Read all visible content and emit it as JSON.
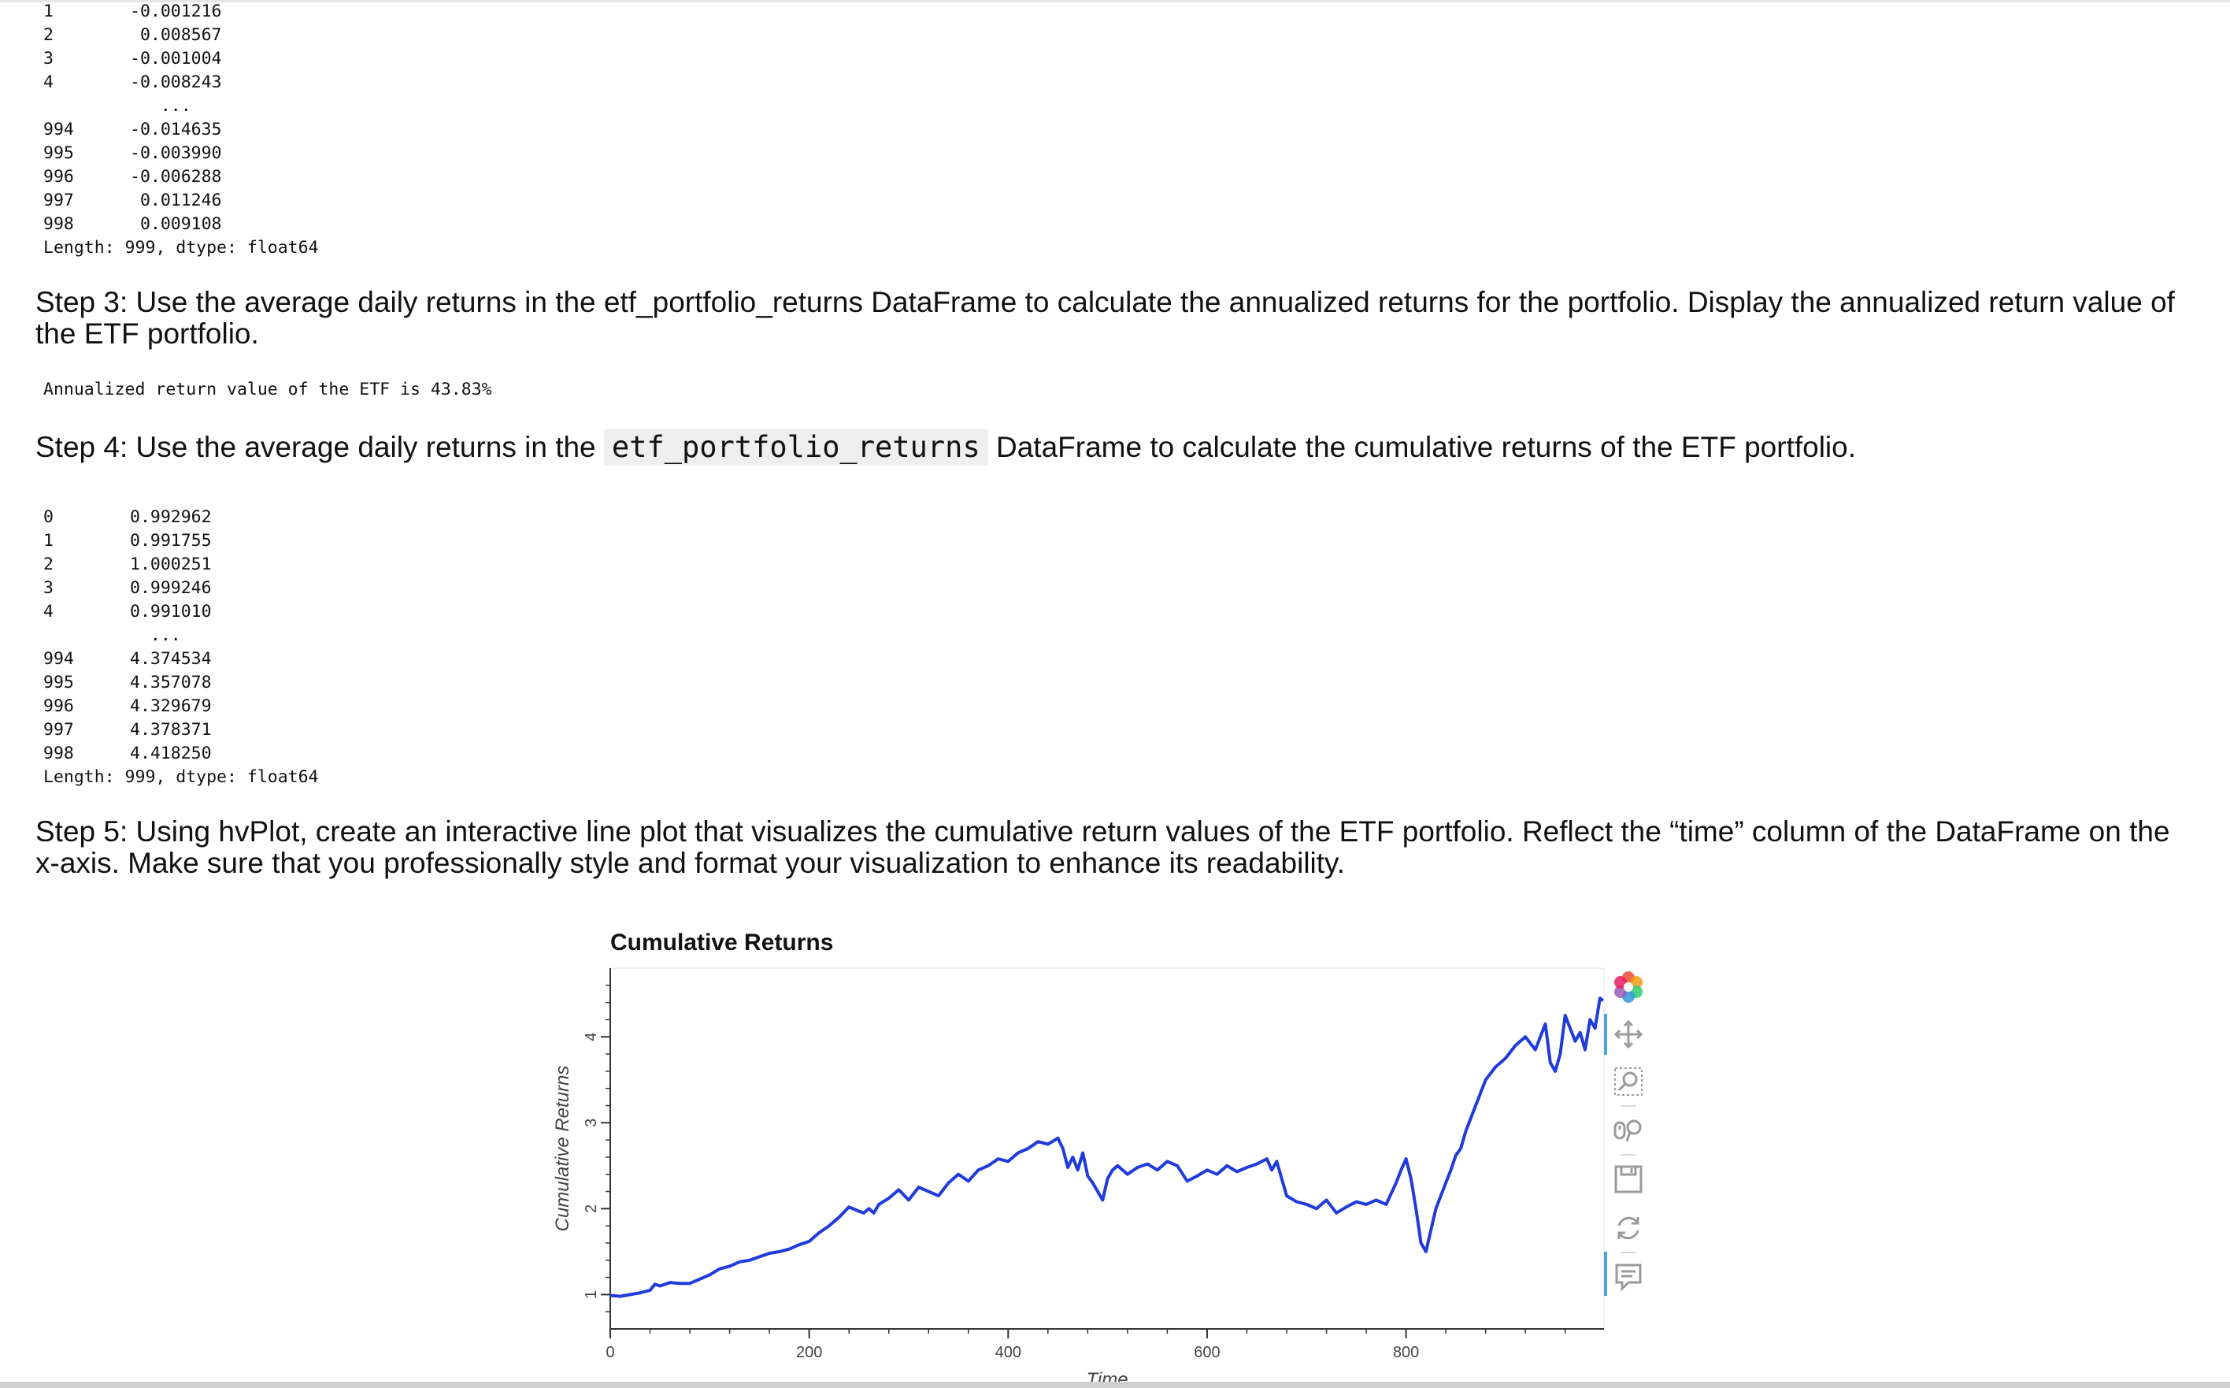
{
  "output1": {
    "rows": [
      {
        "index": "1",
        "value": "-0.001216"
      },
      {
        "index": "2",
        "value": " 0.008567"
      },
      {
        "index": "3",
        "value": "-0.001004"
      },
      {
        "index": "4",
        "value": "-0.008243"
      },
      {
        "index": "",
        "value": "   ..."
      },
      {
        "index": "994",
        "value": "-0.014635"
      },
      {
        "index": "995",
        "value": "-0.003990"
      },
      {
        "index": "996",
        "value": "-0.006288"
      },
      {
        "index": "997",
        "value": " 0.011246"
      },
      {
        "index": "998",
        "value": " 0.009108"
      }
    ],
    "footer": "Length: 999, dtype: float64"
  },
  "step3": {
    "heading": "Step 3: Use the average daily returns in the etf_portfolio_returns DataFrame to calculate the annualized returns for the portfolio. Display the annualized return value of the ETF portfolio.",
    "output": "Annualized return value of the ETF is 43.83%"
  },
  "step4": {
    "heading_before": "Step 4: Use the average daily returns in the",
    "code": "etf_portfolio_returns",
    "heading_after": "DataFrame to calculate the cumulative returns of the ETF portfolio."
  },
  "output2": {
    "rows": [
      {
        "index": "0",
        "value": "0.992962"
      },
      {
        "index": "1",
        "value": "0.991755"
      },
      {
        "index": "2",
        "value": "1.000251"
      },
      {
        "index": "3",
        "value": "0.999246"
      },
      {
        "index": "4",
        "value": "0.991010"
      },
      {
        "index": "",
        "value": "  ..."
      },
      {
        "index": "994",
        "value": "4.374534"
      },
      {
        "index": "995",
        "value": "4.357078"
      },
      {
        "index": "996",
        "value": "4.329679"
      },
      {
        "index": "997",
        "value": "4.378371"
      },
      {
        "index": "998",
        "value": "4.418250"
      }
    ],
    "footer": "Length: 999, dtype: float64"
  },
  "step5": {
    "heading": "Step 5: Using hvPlot, create an interactive line plot that visualizes the cumulative return values of the ETF portfolio. Reflect the “time” column of the DataFrame on the x-axis. Make sure that you professionally style and format your visualization to enhance its readability."
  },
  "chart_data": {
    "type": "line",
    "title": "Cumulative Returns",
    "xlabel": "Time",
    "ylabel": "Cumulative Returns",
    "xlim": [
      0,
      999
    ],
    "ylim": [
      0.6,
      4.8
    ],
    "xticks": [
      0,
      200,
      400,
      600,
      800
    ],
    "yticks": [
      1,
      2,
      3,
      4
    ],
    "line_color": "#1f3bdb",
    "series": [
      {
        "x": [
          0,
          10,
          20,
          30,
          40,
          45,
          50,
          60,
          70,
          80,
          90,
          100,
          110,
          120,
          130,
          140,
          150,
          160,
          170,
          180,
          190,
          200,
          210,
          220,
          230,
          240,
          250,
          255,
          260,
          265,
          270,
          280,
          290,
          300,
          310,
          320,
          330,
          340,
          350,
          360,
          370,
          380,
          390,
          400,
          410,
          420,
          430,
          440,
          450,
          455,
          460,
          465,
          470,
          475,
          480,
          485,
          490,
          495,
          500,
          505,
          510,
          520,
          530,
          540,
          550,
          560,
          570,
          580,
          590,
          600,
          610,
          620,
          630,
          640,
          650,
          660,
          665,
          670,
          675,
          680,
          690,
          700,
          710,
          720,
          730,
          740,
          750,
          760,
          770,
          780,
          790,
          795,
          800,
          805,
          810,
          815,
          820,
          825,
          830,
          835,
          840,
          845,
          850,
          855,
          860,
          870,
          880,
          890,
          900,
          910,
          920,
          930,
          940,
          945,
          950,
          955,
          960,
          965,
          970,
          975,
          980,
          985,
          990,
          995,
          998
        ],
        "y": [
          0.99,
          0.98,
          1.0,
          1.02,
          1.05,
          1.12,
          1.1,
          1.14,
          1.13,
          1.13,
          1.18,
          1.23,
          1.3,
          1.33,
          1.38,
          1.4,
          1.44,
          1.48,
          1.5,
          1.53,
          1.58,
          1.62,
          1.72,
          1.8,
          1.9,
          2.02,
          1.97,
          1.95,
          2.0,
          1.95,
          2.05,
          2.12,
          2.22,
          2.1,
          2.25,
          2.2,
          2.15,
          2.3,
          2.4,
          2.32,
          2.45,
          2.5,
          2.58,
          2.55,
          2.65,
          2.7,
          2.78,
          2.75,
          2.82,
          2.7,
          2.48,
          2.6,
          2.45,
          2.65,
          2.38,
          2.3,
          2.2,
          2.1,
          2.35,
          2.45,
          2.5,
          2.4,
          2.48,
          2.52,
          2.45,
          2.55,
          2.5,
          2.32,
          2.38,
          2.45,
          2.4,
          2.5,
          2.43,
          2.48,
          2.52,
          2.58,
          2.45,
          2.55,
          2.35,
          2.15,
          2.08,
          2.05,
          2.0,
          2.1,
          1.95,
          2.02,
          2.08,
          2.05,
          2.1,
          2.05,
          2.3,
          2.45,
          2.58,
          2.35,
          2.0,
          1.6,
          1.5,
          1.75,
          2.0,
          2.15,
          2.3,
          2.45,
          2.62,
          2.7,
          2.9,
          3.2,
          3.5,
          3.65,
          3.75,
          3.9,
          4.0,
          3.85,
          4.15,
          3.7,
          3.6,
          3.8,
          4.25,
          4.1,
          3.95,
          4.05,
          3.85,
          4.2,
          4.1,
          4.45,
          4.42
        ]
      }
    ]
  },
  "toolbar": {
    "icons": [
      "bokeh-logo-icon",
      "pan-icon",
      "box-zoom-icon",
      "wheel-zoom-icon",
      "save-icon",
      "reset-icon",
      "hover-icon"
    ]
  }
}
